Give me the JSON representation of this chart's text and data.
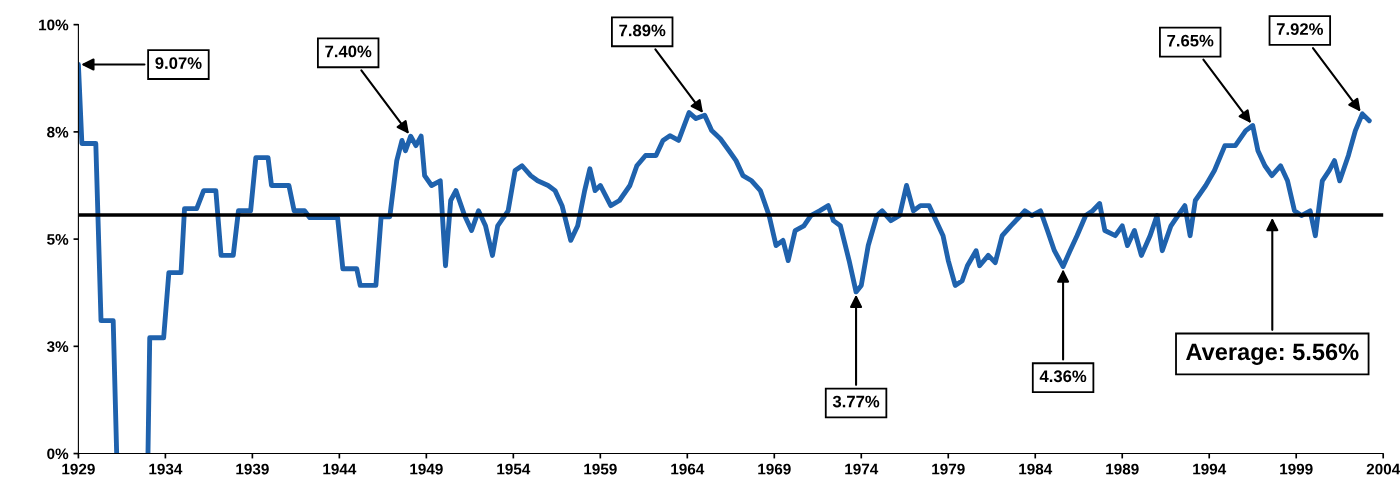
{
  "chart_data": {
    "type": "line",
    "x": [
      1929.0,
      1929.2,
      1930.0,
      1930.3,
      1931.0,
      1931.2,
      1932.0,
      1933.0,
      1933.1,
      1933.9,
      1934.2,
      1934.9,
      1935.1,
      1935.8,
      1936.2,
      1936.9,
      1937.2,
      1937.9,
      1938.2,
      1938.9,
      1939.2,
      1939.9,
      1940.1,
      1941.1,
      1941.4,
      1942.0,
      1942.3,
      1943.9,
      1944.2,
      1945.0,
      1945.2,
      1946.1,
      1946.4,
      1946.9,
      1947.3,
      1947.6,
      1947.8,
      1948.1,
      1948.4,
      1948.7,
      1948.9,
      1949.3,
      1949.8,
      1950.1,
      1950.4,
      1950.7,
      1951.2,
      1951.6,
      1952.0,
      1952.4,
      1952.8,
      1953.1,
      1953.7,
      1954.1,
      1954.5,
      1955.0,
      1955.4,
      1956.0,
      1956.4,
      1956.8,
      1957.3,
      1957.7,
      1958.1,
      1958.4,
      1958.7,
      1959.0,
      1959.6,
      1960.1,
      1960.7,
      1961.1,
      1961.6,
      1962.2,
      1962.6,
      1963.0,
      1963.5,
      1964.1,
      1964.5,
      1965.0,
      1965.4,
      1965.9,
      1966.4,
      1966.8,
      1967.2,
      1967.7,
      1968.2,
      1968.7,
      1969.1,
      1969.5,
      1969.8,
      1970.2,
      1970.7,
      1971.1,
      1971.6,
      1972.1,
      1972.4,
      1972.8,
      1973.3,
      1973.7,
      1974.0,
      1974.4,
      1974.9,
      1975.2,
      1975.7,
      1976.2,
      1976.6,
      1977.0,
      1977.4,
      1977.9,
      1978.3,
      1978.7,
      1979.0,
      1979.4,
      1979.8,
      1980.1,
      1980.6,
      1980.8,
      1981.3,
      1981.7,
      1982.1,
      1982.6,
      1983.0,
      1983.4,
      1983.8,
      1984.3,
      1984.7,
      1985.1,
      1985.6,
      1986.0,
      1986.4,
      1986.9,
      1987.3,
      1987.7,
      1988.0,
      1988.6,
      1989.0,
      1989.3,
      1989.7,
      1990.1,
      1990.6,
      1991.0,
      1991.3,
      1991.8,
      1992.2,
      1992.6,
      1992.9,
      1993.2,
      1993.8,
      1994.3,
      1994.9,
      1995.5,
      1996.1,
      1996.5,
      1996.8,
      1997.2,
      1997.6,
      1998.1,
      1998.5,
      1998.9,
      1999.3,
      1999.8,
      2000.1,
      2000.5,
      2000.9,
      2001.2,
      2001.5,
      2002.0,
      2002.4,
      2002.8,
      2003.2
    ],
    "series": [
      {
        "color": "#1f62ad",
        "values": [
          9.07,
          7.23,
          7.23,
          3.1,
          3.1,
          0,
          null,
          0,
          2.7,
          2.7,
          4.22,
          4.22,
          5.71,
          5.71,
          6.13,
          6.13,
          4.62,
          4.62,
          5.66,
          5.66,
          6.9,
          6.9,
          6.25,
          6.25,
          5.66,
          5.66,
          5.5,
          5.5,
          4.31,
          4.31,
          3.92,
          3.92,
          5.52,
          5.52,
          6.83,
          7.3,
          7.06,
          7.4,
          7.18,
          7.4,
          6.48,
          6.25,
          6.36,
          4.38,
          5.9,
          6.13,
          5.55,
          5.2,
          5.66,
          5.31,
          4.62,
          5.31,
          5.66,
          6.6,
          6.71,
          6.48,
          6.36,
          6.25,
          6.13,
          5.78,
          4.97,
          5.31,
          6.13,
          6.64,
          6.13,
          6.25,
          5.78,
          5.9,
          6.25,
          6.71,
          6.95,
          6.95,
          7.3,
          7.41,
          7.3,
          7.95,
          7.81,
          7.89,
          7.53,
          7.34,
          7.06,
          6.83,
          6.48,
          6.36,
          6.13,
          5.55,
          4.85,
          4.97,
          4.5,
          5.2,
          5.31,
          5.55,
          5.66,
          5.78,
          5.43,
          5.31,
          4.5,
          3.77,
          3.92,
          4.85,
          5.55,
          5.66,
          5.43,
          5.55,
          6.25,
          5.66,
          5.78,
          5.78,
          5.43,
          5.08,
          4.5,
          3.92,
          4.03,
          4.38,
          4.73,
          4.38,
          4.62,
          4.45,
          5.08,
          5.31,
          5.48,
          5.66,
          5.55,
          5.66,
          5.2,
          4.73,
          4.36,
          4.73,
          5.08,
          5.55,
          5.66,
          5.83,
          5.2,
          5.08,
          5.31,
          4.85,
          5.2,
          4.62,
          5.08,
          5.55,
          4.73,
          5.31,
          5.55,
          5.78,
          5.08,
          5.9,
          6.25,
          6.6,
          7.18,
          7.18,
          7.53,
          7.65,
          7.06,
          6.71,
          6.48,
          6.71,
          6.36,
          5.66,
          5.55,
          5.66,
          5.08,
          6.36,
          6.6,
          6.83,
          6.36,
          6.95,
          7.53,
          7.92,
          7.76
        ]
      }
    ],
    "xlim": [
      1929,
      2004
    ],
    "xticks": [
      1929,
      1934,
      1939,
      1944,
      1949,
      1954,
      1959,
      1964,
      1969,
      1974,
      1979,
      1984,
      1989,
      1994,
      1999,
      2004
    ],
    "ylim": [
      0,
      10
    ],
    "yticks": [
      {
        "value": 0,
        "label": "0%"
      },
      {
        "value": 2.5,
        "label": "3%"
      },
      {
        "value": 5,
        "label": "5%"
      },
      {
        "value": 7.5,
        "label": "8%"
      },
      {
        "value": 10,
        "label": "10%"
      }
    ],
    "ref_lines": [
      {
        "axis": "y",
        "value": 5.56,
        "label": "Average: 5.56%",
        "color": "#000000"
      }
    ],
    "annotations": [
      {
        "text": "9.07%",
        "x": 1929.0,
        "y": 9.07
      },
      {
        "text": "7.40%",
        "x": 1948.1,
        "y": 7.4
      },
      {
        "text": "7.89%",
        "x": 1965.0,
        "y": 7.89
      },
      {
        "text": "3.77%",
        "x": 1973.7,
        "y": 3.77
      },
      {
        "text": "4.36%",
        "x": 1985.6,
        "y": 4.36
      },
      {
        "text": "7.65%",
        "x": 1996.5,
        "y": 7.65
      },
      {
        "text": "7.92%",
        "x": 2002.8,
        "y": 7.92
      }
    ],
    "grid": false,
    "legend": false
  }
}
